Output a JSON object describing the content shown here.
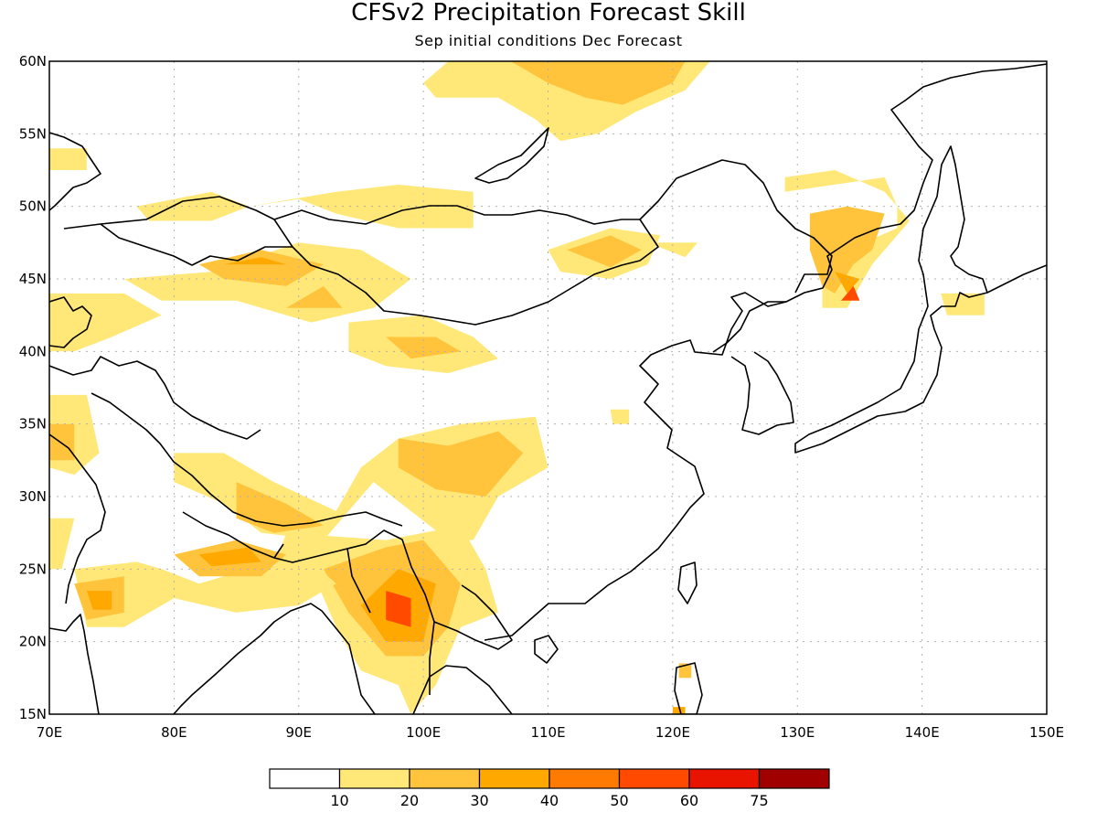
{
  "title": "CFSv2 Precipitation Forecast Skill",
  "subtitle": "Sep initial conditions  Dec Forecast",
  "map": {
    "lon_range": [
      70,
      150
    ],
    "lat_range": [
      15,
      60
    ],
    "x_ticks": [
      {
        "value": 70,
        "label": "70E"
      },
      {
        "value": 80,
        "label": "80E"
      },
      {
        "value": 90,
        "label": "90E"
      },
      {
        "value": 100,
        "label": "100E"
      },
      {
        "value": 110,
        "label": "110E"
      },
      {
        "value": 120,
        "label": "120E"
      },
      {
        "value": 130,
        "label": "130E"
      },
      {
        "value": 140,
        "label": "140E"
      },
      {
        "value": 150,
        "label": "150E"
      }
    ],
    "y_ticks": [
      {
        "value": 15,
        "label": "15N"
      },
      {
        "value": 20,
        "label": "20N"
      },
      {
        "value": 25,
        "label": "25N"
      },
      {
        "value": 30,
        "label": "30N"
      },
      {
        "value": 35,
        "label": "35N"
      },
      {
        "value": 40,
        "label": "40N"
      },
      {
        "value": 45,
        "label": "45N"
      },
      {
        "value": 50,
        "label": "50N"
      },
      {
        "value": 55,
        "label": "55N"
      },
      {
        "value": 60,
        "label": "60N"
      }
    ],
    "grid": true
  },
  "colorbar": {
    "colors": [
      "#ffffff",
      "#ffe878",
      "#ffc43c",
      "#ffa800",
      "#ff7a00",
      "#ff4a00",
      "#e81400",
      "#a00000"
    ],
    "labels": [
      "10",
      "20",
      "30",
      "40",
      "50",
      "60",
      "75"
    ]
  },
  "skill_regions": [
    {
      "level": 1,
      "pts": [
        [
          102,
          60
        ],
        [
          123,
          60
        ],
        [
          121,
          58
        ],
        [
          117,
          56.5
        ],
        [
          114,
          55
        ],
        [
          111,
          54.5
        ],
        [
          109,
          56
        ],
        [
          106,
          57.5
        ],
        [
          101,
          57.5
        ],
        [
          100,
          58.5
        ]
      ]
    },
    {
      "level": 2,
      "pts": [
        [
          107,
          60
        ],
        [
          121,
          60
        ],
        [
          120,
          58.5
        ],
        [
          116,
          57
        ],
        [
          113,
          57.5
        ],
        [
          110,
          58.5
        ]
      ]
    },
    {
      "level": 1,
      "pts": [
        [
          70,
          54
        ],
        [
          73,
          54
        ],
        [
          73,
          52.5
        ],
        [
          70,
          52.5
        ]
      ]
    },
    {
      "level": 1,
      "pts": [
        [
          77,
          50
        ],
        [
          83,
          51
        ],
        [
          86,
          50
        ],
        [
          83,
          49
        ],
        [
          78,
          49
        ]
      ]
    },
    {
      "level": 1,
      "pts": [
        [
          86,
          50
        ],
        [
          90,
          50.5
        ],
        [
          93,
          49.5
        ],
        [
          98,
          48.5
        ],
        [
          104,
          48.5
        ],
        [
          104,
          51
        ],
        [
          98,
          51.5
        ],
        [
          93,
          51
        ]
      ]
    },
    {
      "level": 1,
      "pts": [
        [
          110,
          47
        ],
        [
          115,
          48.5
        ],
        [
          119,
          48
        ],
        [
          118,
          46
        ],
        [
          115,
          45
        ],
        [
          111,
          45.5
        ]
      ]
    },
    {
      "level": 2,
      "pts": [
        [
          111.5,
          47
        ],
        [
          115,
          48
        ],
        [
          117.5,
          47
        ],
        [
          115,
          45.8
        ]
      ]
    },
    {
      "level": 1,
      "pts": [
        [
          118,
          47.5
        ],
        [
          122,
          47.5
        ],
        [
          121,
          46.5
        ]
      ]
    },
    {
      "level": 1,
      "pts": [
        [
          76,
          45
        ],
        [
          83,
          45.5
        ],
        [
          90,
          47.5
        ],
        [
          95,
          47
        ],
        [
          99,
          45
        ],
        [
          96,
          43
        ],
        [
          91,
          42
        ],
        [
          85,
          43.5
        ],
        [
          79,
          43.5
        ]
      ]
    },
    {
      "level": 2,
      "pts": [
        [
          82,
          46
        ],
        [
          87,
          47
        ],
        [
          92,
          46
        ],
        [
          89,
          44.5
        ],
        [
          84,
          45
        ]
      ]
    },
    {
      "level": 3,
      "pts": [
        [
          84,
          46
        ],
        [
          87,
          46.5
        ],
        [
          89,
          46
        ]
      ]
    },
    {
      "level": 2,
      "pts": [
        [
          89,
          43
        ],
        [
          92,
          44.5
        ],
        [
          93.5,
          43
        ]
      ]
    },
    {
      "level": 1,
      "pts": [
        [
          70,
          44
        ],
        [
          76,
          44
        ],
        [
          79,
          42.5
        ],
        [
          75,
          41
        ],
        [
          72,
          40
        ],
        [
          70,
          40
        ]
      ]
    },
    {
      "level": 1,
      "pts": [
        [
          94,
          42
        ],
        [
          100,
          42.5
        ],
        [
          104,
          41
        ],
        [
          106,
          39.5
        ],
        [
          102,
          38.5
        ],
        [
          97,
          39
        ],
        [
          94,
          40
        ]
      ]
    },
    {
      "level": 2,
      "pts": [
        [
          97,
          41
        ],
        [
          101,
          41
        ],
        [
          103,
          40
        ],
        [
          99,
          39.5
        ]
      ]
    },
    {
      "level": 1,
      "pts": [
        [
          70,
          37
        ],
        [
          73,
          37
        ],
        [
          74,
          33
        ],
        [
          72,
          31.5
        ],
        [
          70,
          32
        ]
      ]
    },
    {
      "level": 2,
      "pts": [
        [
          70,
          35
        ],
        [
          72,
          35
        ],
        [
          72,
          32.5
        ],
        [
          70,
          32.5
        ]
      ]
    },
    {
      "level": 1,
      "pts": [
        [
          70,
          28.5
        ],
        [
          72,
          28.5
        ],
        [
          71,
          25
        ],
        [
          70,
          25
        ]
      ]
    },
    {
      "level": 1,
      "pts": [
        [
          80,
          33
        ],
        [
          84,
          33
        ],
        [
          88,
          31
        ],
        [
          93,
          29
        ],
        [
          95,
          32
        ],
        [
          98,
          34
        ],
        [
          103,
          35
        ],
        [
          109,
          35.5
        ],
        [
          110,
          32
        ],
        [
          106,
          30
        ],
        [
          104,
          27
        ],
        [
          102,
          27
        ],
        [
          99,
          29
        ],
        [
          96,
          31
        ],
        [
          92,
          27
        ],
        [
          87,
          27.5
        ],
        [
          84,
          29.5
        ],
        [
          80,
          31
        ]
      ]
    },
    {
      "level": 2,
      "pts": [
        [
          85,
          31
        ],
        [
          89,
          29.5
        ],
        [
          92,
          28
        ],
        [
          88,
          27.5
        ],
        [
          85,
          28.5
        ]
      ]
    },
    {
      "level": 2,
      "pts": [
        [
          98,
          34
        ],
        [
          102,
          33.5
        ],
        [
          106,
          34.5
        ],
        [
          108,
          33
        ],
        [
          105,
          30
        ],
        [
          101,
          30.5
        ],
        [
          98,
          32
        ]
      ]
    },
    {
      "level": 1,
      "pts": [
        [
          89,
          27.5
        ],
        [
          97,
          27
        ],
        [
          103,
          28
        ],
        [
          105,
          25
        ],
        [
          106,
          22
        ],
        [
          103,
          21
        ],
        [
          101,
          17
        ],
        [
          99,
          15
        ],
        [
          98,
          17
        ],
        [
          95,
          18
        ],
        [
          93,
          21
        ],
        [
          91,
          25
        ],
        [
          88,
          25
        ]
      ]
    },
    {
      "level": 2,
      "pts": [
        [
          92,
          25
        ],
        [
          97,
          26.5
        ],
        [
          100,
          27
        ],
        [
          103,
          24
        ],
        [
          102,
          21
        ],
        [
          100,
          19
        ],
        [
          97,
          19
        ],
        [
          94,
          22
        ]
      ]
    },
    {
      "level": 3,
      "pts": [
        [
          95,
          22.5
        ],
        [
          98,
          25
        ],
        [
          101,
          24
        ],
        [
          100,
          20
        ],
        [
          97,
          20
        ]
      ]
    },
    {
      "level": 5,
      "pts": [
        [
          97,
          23.5
        ],
        [
          99,
          23
        ],
        [
          99,
          21
        ],
        [
          97,
          21.5
        ]
      ]
    },
    {
      "level": 1,
      "pts": [
        [
          72,
          25
        ],
        [
          77,
          25.5
        ],
        [
          79,
          25
        ],
        [
          82,
          24
        ],
        [
          86,
          25
        ],
        [
          91,
          25.5
        ],
        [
          93,
          24
        ],
        [
          90,
          22.5
        ],
        [
          85,
          22
        ],
        [
          80,
          23
        ],
        [
          76,
          21
        ],
        [
          73,
          21
        ]
      ]
    },
    {
      "level": 2,
      "pts": [
        [
          80,
          26
        ],
        [
          85,
          27
        ],
        [
          89,
          26
        ],
        [
          87,
          24.5
        ],
        [
          82,
          24.5
        ]
      ]
    },
    {
      "level": 3,
      "pts": [
        [
          82,
          26
        ],
        [
          86,
          26.5
        ],
        [
          87,
          25.5
        ],
        [
          83,
          25.2
        ]
      ]
    },
    {
      "level": 2,
      "pts": [
        [
          72,
          24
        ],
        [
          76,
          24.5
        ],
        [
          76,
          22
        ],
        [
          73,
          21.5
        ]
      ]
    },
    {
      "level": 3,
      "pts": [
        [
          73,
          23.5
        ],
        [
          75,
          23.5
        ],
        [
          75,
          22.2
        ],
        [
          73.5,
          22.2
        ]
      ]
    },
    {
      "level": 1,
      "pts": [
        [
          129,
          51
        ],
        [
          133,
          51.5
        ],
        [
          137,
          52
        ],
        [
          138,
          50
        ],
        [
          138,
          48.5
        ],
        [
          134,
          47
        ],
        [
          132,
          45.5
        ],
        [
          132,
          43
        ],
        [
          134,
          43
        ],
        [
          136,
          46
        ],
        [
          138,
          48
        ],
        [
          139,
          49
        ],
        [
          137,
          51
        ],
        [
          133,
          52.5
        ],
        [
          129,
          52
        ]
      ]
    },
    {
      "level": 2,
      "pts": [
        [
          131,
          49.5
        ],
        [
          134,
          50
        ],
        [
          137,
          49.5
        ],
        [
          136,
          47
        ],
        [
          134.5,
          46
        ],
        [
          133,
          44
        ],
        [
          132,
          44.5
        ],
        [
          131,
          47
        ]
      ]
    },
    {
      "level": 3,
      "pts": [
        [
          133,
          45.5
        ],
        [
          135,
          45
        ],
        [
          136,
          46
        ],
        [
          134,
          44
        ]
      ]
    },
    {
      "level": 5,
      "pts": [
        [
          133.5,
          43.5
        ],
        [
          134.5,
          44.5
        ],
        [
          135,
          43.5
        ]
      ]
    },
    {
      "level": 1,
      "pts": [
        [
          141.5,
          44
        ],
        [
          145,
          44
        ],
        [
          145,
          42.5
        ],
        [
          142,
          42.5
        ]
      ]
    },
    {
      "level": 1,
      "pts": [
        [
          115,
          36
        ],
        [
          116.5,
          36
        ],
        [
          116.5,
          35
        ],
        [
          115.2,
          35
        ]
      ]
    },
    {
      "level": 2,
      "pts": [
        [
          120.5,
          18.5
        ],
        [
          121.5,
          18.5
        ],
        [
          121.5,
          17.5
        ],
        [
          120.5,
          17.5
        ]
      ]
    },
    {
      "level": 3,
      "pts": [
        [
          120,
          15.5
        ],
        [
          121,
          15.5
        ],
        [
          121,
          15
        ],
        [
          120,
          15
        ]
      ]
    }
  ]
}
